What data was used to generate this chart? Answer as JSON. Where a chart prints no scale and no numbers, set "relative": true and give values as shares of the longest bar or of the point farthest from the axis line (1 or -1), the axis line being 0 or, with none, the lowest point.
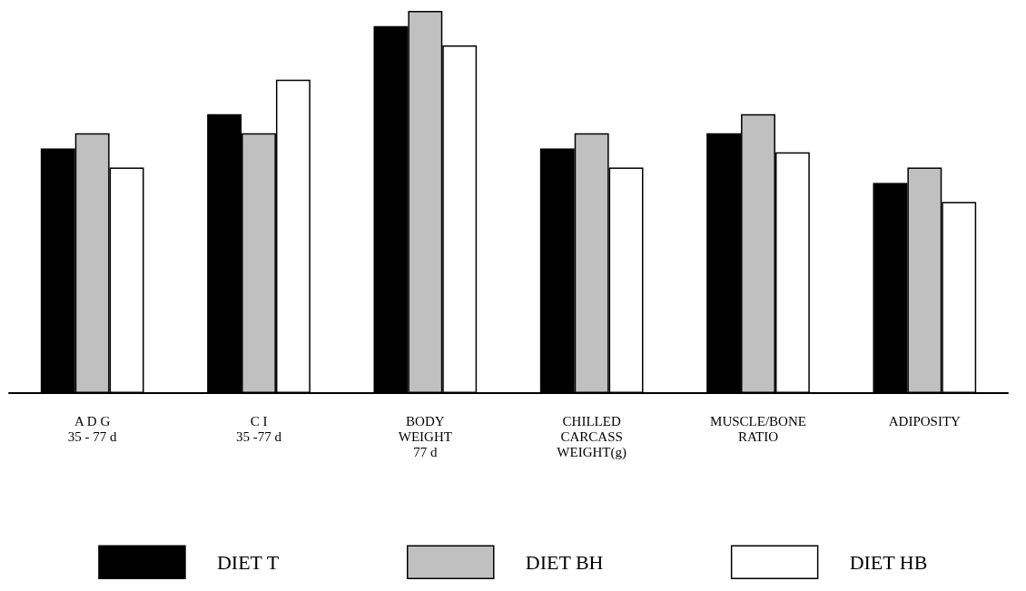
{
  "chart_data": {
    "type": "bar",
    "relative": true,
    "legend": "bottom",
    "categories": [
      "A D G\n35 - 77 d",
      "C I\n35 -77 d",
      "BODY\nWEIGHT\n77 d",
      "CHILLED\nCARCASS\nWEIGHT(g)",
      "MUSCLE/BONE\nRATIO",
      "ADIPOSITY"
    ],
    "series": [
      {
        "name": "DIET T",
        "color": "#000000",
        "values": [
          0.64,
          0.73,
          0.96,
          0.64,
          0.68,
          0.55
        ]
      },
      {
        "name": "DIET BH",
        "color": "#c0c0c0",
        "values": [
          0.68,
          0.68,
          1,
          0.68,
          0.73,
          0.59
        ]
      },
      {
        "name": "DIET HB",
        "color": "#ffffff",
        "values": [
          0.59,
          0.82,
          0.91,
          0.59,
          0.63,
          0.5
        ]
      }
    ]
  }
}
